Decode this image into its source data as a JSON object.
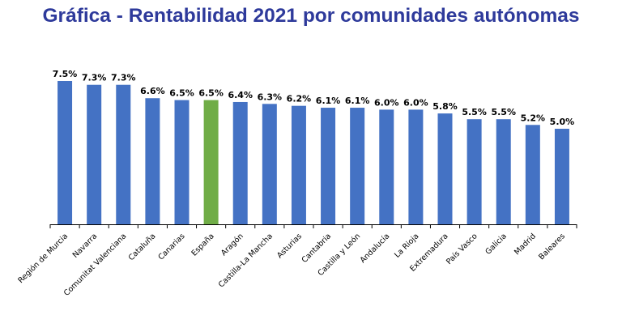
{
  "title": "Gráfica - Rentabilidad 2021 por comunidades autónomas",
  "colors": {
    "title": "#2e3a9b",
    "bar": "#4472c4",
    "highlight_bar": "#70ad47",
    "axis": "#000000"
  },
  "chart_data": {
    "type": "bar",
    "title": "Gráfica - Rentabilidad 2021 por comunidades autónomas",
    "xlabel": "",
    "ylabel": "",
    "unit": "%",
    "ylim": [
      0,
      7.5
    ],
    "grid": false,
    "legend": "none",
    "highlight_category": "España",
    "categories": [
      "Región de Murcia",
      "Navarra",
      "Comunitat Valenciana",
      "Cataluña",
      "Canarias",
      "España",
      "Aragón",
      "Castilla-La Mancha",
      "Asturias",
      "Cantabria",
      "Castilla y León",
      "Andalucía",
      "La Rioja",
      "Extremadura",
      "País Vasco",
      "Galicia",
      "Madrid",
      "Baleares"
    ],
    "values": [
      7.5,
      7.3,
      7.3,
      6.6,
      6.5,
      6.5,
      6.4,
      6.3,
      6.2,
      6.1,
      6.1,
      6.0,
      6.0,
      5.8,
      5.5,
      5.5,
      5.2,
      5.0
    ],
    "data_labels": [
      "7.5%",
      "7.3%",
      "7.3%",
      "6.6%",
      "6.5%",
      "6.5%",
      "6.4%",
      "6.3%",
      "6.2%",
      "6.1%",
      "6.1%",
      "6.0%",
      "6.0%",
      "5.8%",
      "5.5%",
      "5.5%",
      "5.2%",
      "5.0%"
    ]
  }
}
